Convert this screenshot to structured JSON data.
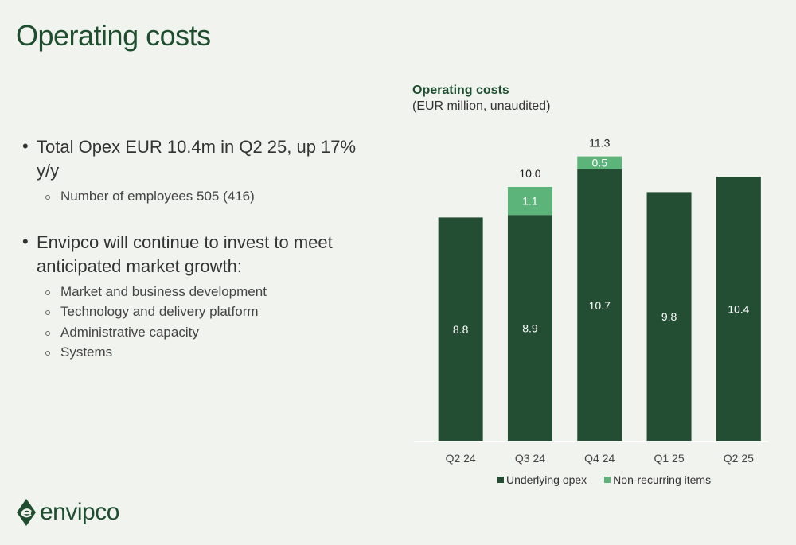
{
  "page": {
    "title": "Operating costs"
  },
  "bullets": [
    {
      "text": "Total Opex EUR 10.4m in Q2 25, up 17% y/y",
      "sub": [
        "Number of employees 505 (416)"
      ]
    },
    {
      "text": "Envipco will continue to invest to meet anticipated market growth:",
      "sub": [
        "Market and business development",
        "Technology and delivery platform",
        "Administrative capacity",
        "Systems"
      ]
    }
  ],
  "chart_data": {
    "type": "bar",
    "stacked": true,
    "title": "Operating costs",
    "subtitle": "(EUR million, unaudited)",
    "categories": [
      "Q2 24",
      "Q3 24",
      "Q4 24",
      "Q1 25",
      "Q2 25"
    ],
    "series": [
      {
        "name": "Underlying opex",
        "color": "#234e33",
        "values": [
          8.8,
          8.9,
          10.7,
          9.8,
          10.4
        ]
      },
      {
        "name": "Non-recurring items",
        "color": "#5cb47a",
        "values": [
          null,
          1.1,
          0.5,
          null,
          null
        ]
      }
    ],
    "totals": [
      "",
      "10.0",
      "11.3",
      "",
      ""
    ],
    "ylim": [
      0,
      12
    ],
    "grid": false,
    "legend": "bottom"
  },
  "logo": {
    "text": "envipco",
    "color": "#1f4d30"
  }
}
